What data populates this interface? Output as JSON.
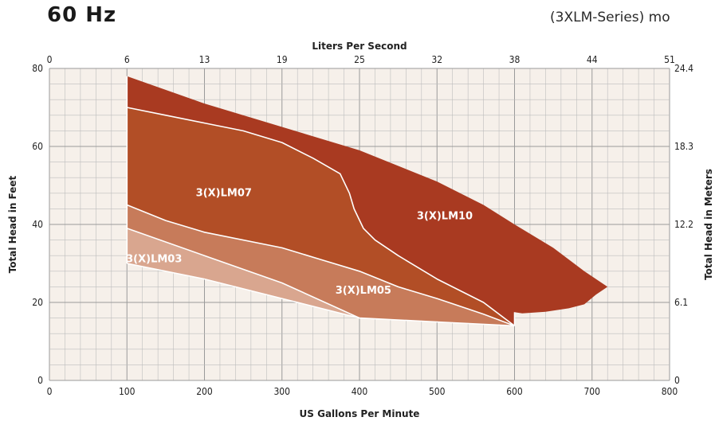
{
  "header": {
    "hz_title": "60 Hz",
    "series_caption": "(3XLM-Series) mo"
  },
  "chart_data": {
    "type": "area",
    "title": "",
    "xlabel": "US Gallons Per Minute",
    "ylabel": "Total Head in Feet",
    "x2label": "Liters Per Second",
    "y2label": "Total Head in Meters",
    "xlim": [
      0,
      800
    ],
    "ylim": [
      0,
      80
    ],
    "grid": true,
    "x_ticks": [
      0,
      100,
      200,
      300,
      400,
      500,
      600,
      700,
      800
    ],
    "y_ticks": [
      0,
      20,
      40,
      60,
      80
    ],
    "x2_ticks": [
      {
        "x": 0,
        "label": "0"
      },
      {
        "x": 100,
        "label": "6"
      },
      {
        "x": 200,
        "label": "13"
      },
      {
        "x": 300,
        "label": "19"
      },
      {
        "x": 400,
        "label": "25"
      },
      {
        "x": 500,
        "label": "32"
      },
      {
        "x": 600,
        "label": "38"
      },
      {
        "x": 700,
        "label": "44"
      },
      {
        "x": 800,
        "label": "51"
      }
    ],
    "y2_ticks": [
      {
        "y": 0,
        "label": "0"
      },
      {
        "y": 20,
        "label": "6.1"
      },
      {
        "y": 40,
        "label": "12.2"
      },
      {
        "y": 60,
        "label": "18.3"
      },
      {
        "y": 80,
        "label": "24.4"
      }
    ],
    "series": [
      {
        "name": "3(X)LM10",
        "color": "#a93a21",
        "label_at": [
          510,
          42
        ],
        "polygon": [
          [
            100,
            78
          ],
          [
            200,
            71
          ],
          [
            300,
            65
          ],
          [
            400,
            59
          ],
          [
            500,
            51
          ],
          [
            560,
            45
          ],
          [
            600,
            40
          ],
          [
            650,
            34
          ],
          [
            690,
            28
          ],
          [
            720,
            24
          ],
          [
            705,
            22
          ],
          [
            690,
            19.5
          ],
          [
            670,
            18.5
          ],
          [
            640,
            17.6
          ],
          [
            610,
            17.2
          ],
          [
            600,
            17.5
          ],
          [
            600,
            14
          ],
          [
            560,
            20
          ],
          [
            500,
            26
          ],
          [
            450,
            32
          ],
          [
            420,
            36
          ],
          [
            405,
            39
          ],
          [
            393,
            44
          ],
          [
            387,
            48
          ],
          [
            375,
            53
          ],
          [
            340,
            57
          ],
          [
            300,
            61
          ],
          [
            250,
            64
          ],
          [
            200,
            66
          ],
          [
            150,
            68
          ],
          [
            100,
            70
          ]
        ]
      },
      {
        "name": "3(X)LM07",
        "color": "#b24e26",
        "label_at": [
          225,
          48
        ],
        "polygon": [
          [
            100,
            70
          ],
          [
            150,
            68
          ],
          [
            200,
            66
          ],
          [
            250,
            64
          ],
          [
            300,
            61
          ],
          [
            340,
            57
          ],
          [
            375,
            53
          ],
          [
            387,
            48
          ],
          [
            393,
            44
          ],
          [
            405,
            39
          ],
          [
            420,
            36
          ],
          [
            450,
            32
          ],
          [
            500,
            26
          ],
          [
            560,
            20
          ],
          [
            600,
            14
          ],
          [
            560,
            17
          ],
          [
            500,
            21
          ],
          [
            450,
            24
          ],
          [
            400,
            28
          ],
          [
            350,
            31
          ],
          [
            300,
            34
          ],
          [
            200,
            38
          ],
          [
            150,
            41
          ],
          [
            100,
            45
          ]
        ]
      },
      {
        "name": "3(X)LM05",
        "color": "#c77b5a",
        "label_at": [
          405,
          23
        ],
        "polygon": [
          [
            100,
            45
          ],
          [
            150,
            41
          ],
          [
            200,
            38
          ],
          [
            300,
            34
          ],
          [
            350,
            31
          ],
          [
            400,
            28
          ],
          [
            450,
            24
          ],
          [
            500,
            21
          ],
          [
            560,
            17
          ],
          [
            600,
            14
          ],
          [
            500,
            15
          ],
          [
            400,
            16
          ],
          [
            300,
            25
          ],
          [
            200,
            32
          ],
          [
            100,
            39
          ]
        ]
      },
      {
        "name": "3(X)LM03",
        "color": "#d9a68f",
        "label_at": [
          135,
          31
        ],
        "polygon": [
          [
            100,
            39
          ],
          [
            200,
            32
          ],
          [
            300,
            25
          ],
          [
            400,
            16
          ],
          [
            300,
            21
          ],
          [
            200,
            26
          ],
          [
            100,
            30
          ]
        ]
      }
    ],
    "boundaries": [
      [
        [
          100,
          70
        ],
        [
          150,
          68
        ],
        [
          200,
          66
        ],
        [
          250,
          64
        ],
        [
          300,
          61
        ],
        [
          340,
          57
        ],
        [
          375,
          53
        ],
        [
          387,
          48
        ],
        [
          393,
          44
        ],
        [
          405,
          39
        ],
        [
          420,
          36
        ],
        [
          450,
          32
        ],
        [
          500,
          26
        ],
        [
          560,
          20
        ],
        [
          600,
          14
        ]
      ],
      [
        [
          100,
          45
        ],
        [
          150,
          41
        ],
        [
          200,
          38
        ],
        [
          300,
          34
        ],
        [
          350,
          31
        ],
        [
          400,
          28
        ],
        [
          450,
          24
        ],
        [
          500,
          21
        ],
        [
          560,
          17
        ],
        [
          600,
          14
        ]
      ],
      [
        [
          100,
          39
        ],
        [
          200,
          32
        ],
        [
          300,
          25
        ],
        [
          400,
          16
        ],
        [
          500,
          15
        ],
        [
          600,
          14
        ]
      ],
      [
        [
          100,
          30
        ],
        [
          200,
          26
        ],
        [
          300,
          21
        ],
        [
          400,
          16
        ]
      ],
      [
        [
          100,
          30
        ],
        [
          100,
          78
        ]
      ],
      [
        [
          600,
          14
        ],
        [
          600,
          17.5
        ]
      ]
    ],
    "grid_color": "#bdbdbd",
    "plot_bg": "#f6f0ea"
  }
}
